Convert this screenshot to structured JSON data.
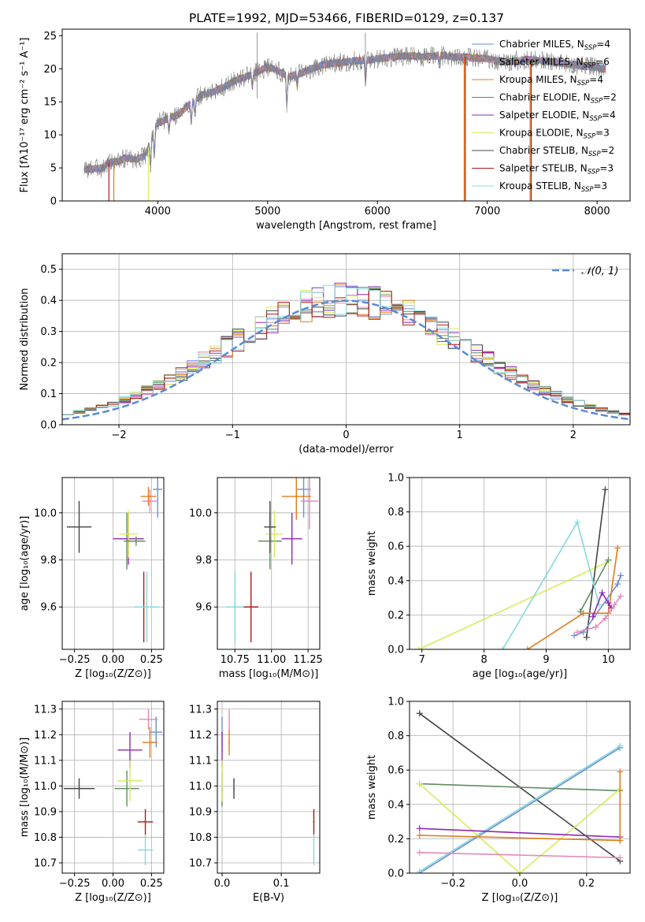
{
  "figure": {
    "title": "PLATE=1992, MJD=53466, FIBERID=0129, z=0.137"
  },
  "colors": {
    "Chabrier MILES": "#6a8fd6",
    "Salpeter MILES": "#e58ab8",
    "Kroupa MILES": "#e07b1b",
    "Chabrier ELODIE": "#5f8b5f",
    "Salpeter ELODIE": "#8e2ab3",
    "Kroupa ELODIE": "#d6ec5a",
    "Chabrier STELIB": "#444444",
    "Salpeter STELIB": "#b01818",
    "Kroupa STELIB": "#86d8dc"
  },
  "chart_data": [
    {
      "id": "spectrum",
      "type": "line",
      "xlabel": "wavelength [Angstrom, rest frame]",
      "ylabel": "Flux [fλ10⁻¹⁷ erg cm⁻² s⁻¹ A⁻¹]",
      "xlim": [
        3130,
        8300
      ],
      "ylim": [
        0,
        26
      ],
      "xticks": [
        4000,
        5000,
        6000,
        7000,
        8000
      ],
      "yticks": [
        0,
        5,
        10,
        15,
        20,
        25
      ],
      "grid": false,
      "legend_position": "right",
      "legend": [
        {
          "model": "Chabrier MILES",
          "label": "Chabrier MILES, N",
          "sub": "SSP",
          "tail": "=4"
        },
        {
          "model": "Salpeter MILES",
          "label": "Salpeter MILES, N",
          "sub": "SSP",
          "tail": "=6"
        },
        {
          "model": "Kroupa MILES",
          "label": "Kroupa MILES, N",
          "sub": "SSP",
          "tail": "=4"
        },
        {
          "model": "Chabrier ELODIE",
          "label": "Chabrier ELODIE, N",
          "sub": "SSP",
          "tail": "=2"
        },
        {
          "model": "Salpeter ELODIE",
          "label": "Salpeter ELODIE, N",
          "sub": "SSP",
          "tail": "=4"
        },
        {
          "model": "Kroupa ELODIE",
          "label": "Kroupa ELODIE, N",
          "sub": "SSP",
          "tail": "=3"
        },
        {
          "model": "Chabrier STELIB",
          "label": "Chabrier STELIB, N",
          "sub": "SSP",
          "tail": "=2"
        },
        {
          "model": "Salpeter STELIB",
          "label": "Salpeter STELIB, N",
          "sub": "SSP",
          "tail": "=3"
        },
        {
          "model": "Kroupa STELIB",
          "label": "Kroupa STELIB, N",
          "sub": "SSP",
          "tail": "=3"
        }
      ],
      "continuum": {
        "x": [
          3330,
          3500,
          3550,
          3650,
          3700,
          3800,
          3880,
          3950,
          4000,
          4100,
          4200,
          4300,
          4400,
          4500,
          4600,
          4700,
          4800,
          4900,
          5000,
          5100,
          5200,
          5300,
          5400,
          5500,
          5600,
          5700,
          5800,
          5900,
          6000,
          6100,
          6200,
          6300,
          6400,
          6500,
          6600,
          6700,
          6800,
          6900,
          7000,
          7100,
          7200,
          7300,
          7400,
          7500,
          7600,
          7700,
          7800,
          7900,
          8000,
          8080
        ],
        "y": [
          4.8,
          5.0,
          5.8,
          6.0,
          6.5,
          6.3,
          6.8,
          9.5,
          11.8,
          12.5,
          13.2,
          14.8,
          16.0,
          16.5,
          17.2,
          18.2,
          18.8,
          19.5,
          20.3,
          19.6,
          18.8,
          19.3,
          20.0,
          20.6,
          20.8,
          21.0,
          21.2,
          21.3,
          21.5,
          21.7,
          21.9,
          22.0,
          21.8,
          21.9,
          22.0,
          21.8,
          21.8,
          21.6,
          21.5,
          21.2,
          21.0,
          21.3,
          21.4,
          21.2,
          21.0,
          20.8,
          20.6,
          20.4,
          20.2,
          20.0
        ]
      },
      "absorption_lines": [
        {
          "x": 3934,
          "depth": 4.0
        },
        {
          "x": 3969,
          "depth": 3.5
        },
        {
          "x": 4102,
          "depth": 2.0
        },
        {
          "x": 4305,
          "depth": 3.2
        },
        {
          "x": 4340,
          "depth": 2.5
        },
        {
          "x": 4861,
          "depth": 2.0
        },
        {
          "x": 5175,
          "depth": 5.0
        },
        {
          "x": 5270,
          "depth": 2.0
        },
        {
          "x": 5892,
          "depth": 4.0
        },
        {
          "x": 6563,
          "depth": 1.5
        }
      ],
      "data_spikes": [
        {
          "x": 4905,
          "y": 25.5
        },
        {
          "x": 5890,
          "y": 25.5
        }
      ],
      "edge_artifacts": [
        3555,
        3600,
        3915,
        6790,
        6800,
        7390,
        7400
      ]
    },
    {
      "id": "residuals",
      "type": "histogram",
      "xlabel": "(data-model)/error",
      "ylabel": "Normed distribution",
      "xlim": [
        -2.5,
        2.5
      ],
      "ylim": [
        0,
        0.55
      ],
      "xticks": [
        -2,
        -1,
        0,
        1,
        2
      ],
      "xticklabels": [
        "−2",
        "−1",
        "0",
        "1",
        "2"
      ],
      "yticks": [
        0.0,
        0.1,
        0.2,
        0.3,
        0.4,
        0.5
      ],
      "yticklabels": [
        "0.0",
        "0.1",
        "0.2",
        "0.3",
        "0.4",
        "0.5"
      ],
      "grid": true,
      "bins": {
        "start": -2.5,
        "width": 0.1,
        "count": 50
      },
      "reference_curve": {
        "label": "𝒩(0, 1)",
        "mean": 0,
        "sigma": 1,
        "style": "dashed",
        "color": "#5b8bd6"
      }
    },
    {
      "id": "age-vs-metallicity",
      "type": "errorbar",
      "xlabel": "Z [log₁₀(Z/Z⊙)]",
      "ylabel": "age  [log₁₀(age/yr)]",
      "xlim": [
        -0.33,
        0.33
      ],
      "ylim": [
        9.42,
        10.15
      ],
      "xticks": [
        -0.25,
        0.0,
        0.25
      ],
      "xticklabels": [
        "−0.25",
        "0.00",
        "0.25"
      ],
      "yticks": [
        9.6,
        9.8,
        10.0
      ],
      "yticklabels": [
        "9.6",
        "9.8",
        "10.0"
      ],
      "grid": true,
      "points": [
        {
          "model": "Chabrier MILES",
          "x": 0.29,
          "xerr": 0.03,
          "y": 10.1,
          "yerr": 0.12
        },
        {
          "model": "Salpeter MILES",
          "x": 0.24,
          "xerr": 0.05,
          "y": 10.05,
          "yerr": 0.05
        },
        {
          "model": "Kroupa MILES",
          "x": 0.23,
          "xerr": 0.05,
          "y": 10.07,
          "yerr": 0.04
        },
        {
          "model": "Chabrier ELODIE",
          "x": 0.09,
          "xerr": 0.02,
          "y": 9.88,
          "yerr": 0.12
        },
        {
          "model": "Salpeter ELODIE",
          "x": 0.1,
          "xerr": 0.1,
          "y": 9.89,
          "yerr": 0.11
        },
        {
          "model": "Kroupa ELODIE",
          "x": 0.1,
          "xerr": 0.06,
          "y": 9.91,
          "yerr": 0.1
        },
        {
          "model": "Chabrier STELIB",
          "x": -0.22,
          "xerr": 0.08,
          "y": 9.94,
          "yerr": 0.11
        },
        {
          "model": "Salpeter STELIB",
          "x": 0.2,
          "xerr": 0.005,
          "y": 9.6,
          "yerr": 0.15
        },
        {
          "model": "Kroupa STELIB",
          "x": 0.22,
          "xerr": 0.08,
          "y": 9.6,
          "yerr": 0.15
        },
        {
          "model": "Chabrier ELODIE",
          "x": 0.15,
          "xerr": 0.06,
          "y": 9.88,
          "yerr": 0.02
        }
      ]
    },
    {
      "id": "age-vs-mass",
      "type": "errorbar",
      "xlabel": "mass [log₁₀(M/M⊙)]",
      "ylabel": "",
      "xlim": [
        10.63,
        11.33
      ],
      "ylim": [
        9.42,
        10.15
      ],
      "xticks": [
        10.75,
        11.0,
        11.25
      ],
      "xticklabels": [
        "10.75",
        "11.00",
        "11.25"
      ],
      "yticks": [
        9.6,
        9.8,
        10.0
      ],
      "yticklabels": [
        "9.6",
        "9.8",
        "10.0"
      ],
      "grid": true,
      "points": [
        {
          "model": "Chabrier MILES",
          "x": 11.22,
          "xerr": 0.05,
          "y": 10.1,
          "yerr": 0.12
        },
        {
          "model": "Salpeter MILES",
          "x": 11.26,
          "xerr": 0.06,
          "y": 10.05,
          "yerr": 0.12
        },
        {
          "model": "Kroupa MILES",
          "x": 11.17,
          "xerr": 0.1,
          "y": 10.07,
          "yerr": 0.1
        },
        {
          "model": "Chabrier ELODIE",
          "x": 10.99,
          "xerr": 0.08,
          "y": 9.88,
          "yerr": 0.12
        },
        {
          "model": "Salpeter ELODIE",
          "x": 11.14,
          "xerr": 0.07,
          "y": 9.89,
          "yerr": 0.11
        },
        {
          "model": "Kroupa ELODIE",
          "x": 11.02,
          "xerr": 0.06,
          "y": 9.91,
          "yerr": 0.1
        },
        {
          "model": "Chabrier STELIB",
          "x": 10.99,
          "xerr": 0.04,
          "y": 9.94,
          "yerr": 0.11
        },
        {
          "model": "Salpeter STELIB",
          "x": 10.86,
          "xerr": 0.05,
          "y": 9.6,
          "yerr": 0.15
        },
        {
          "model": "Kroupa STELIB",
          "x": 10.75,
          "xerr": 0.06,
          "y": 9.6,
          "yerr": 0.15
        }
      ]
    },
    {
      "id": "weight-vs-age",
      "type": "line",
      "xlabel": "age  [log₁₀(age/yr)]",
      "ylabel": "mass weight",
      "xlim": [
        6.8,
        10.35
      ],
      "ylim": [
        0,
        1.0
      ],
      "xticks": [
        7,
        8,
        9,
        10
      ],
      "xticklabels": [
        "7",
        "8",
        "9",
        "10"
      ],
      "yticks": [
        0.0,
        0.2,
        0.4,
        0.6,
        0.8,
        1.0
      ],
      "yticklabels": [
        "0.0",
        "0.2",
        "0.4",
        "0.6",
        "0.8",
        "1.0"
      ],
      "grid": true,
      "series": [
        {
          "model": "Kroupa ELODIE",
          "x": [
            6.95,
            10.0
          ],
          "y": [
            0.0,
            0.51
          ]
        },
        {
          "model": "Chabrier ELODIE",
          "x": [
            9.55,
            10.0
          ],
          "y": [
            0.22,
            0.52
          ]
        },
        {
          "model": "Chabrier STELIB",
          "x": [
            9.65,
            9.95
          ],
          "y": [
            0.07,
            0.93
          ]
        },
        {
          "model": "Kroupa STELIB",
          "x": [
            8.3,
            9.5,
            9.85
          ],
          "y": [
            0.0,
            0.74,
            0.26
          ]
        },
        {
          "model": "Chabrier MILES",
          "x": [
            9.45,
            9.6,
            10.15,
            10.2
          ],
          "y": [
            0.08,
            0.1,
            0.38,
            0.43
          ]
        },
        {
          "model": "Kroupa MILES",
          "x": [
            8.7,
            9.6,
            10.0,
            10.15
          ],
          "y": [
            0.0,
            0.21,
            0.21,
            0.59
          ]
        },
        {
          "model": "Salpeter ELODIE",
          "x": [
            9.75,
            9.9,
            10.0,
            10.05
          ],
          "y": [
            0.19,
            0.33,
            0.27,
            0.24
          ]
        },
        {
          "model": "Salpeter MILES",
          "x": [
            9.5,
            9.8,
            9.95,
            10.1,
            10.2
          ],
          "y": [
            0.1,
            0.13,
            0.18,
            0.26,
            0.31
          ]
        }
      ]
    },
    {
      "id": "mass-vs-metallicity",
      "type": "errorbar",
      "xlabel": "Z [log₁₀(Z/Z⊙)]",
      "ylabel": "mass [log₁₀(M/M⊙)]",
      "xlim": [
        -0.33,
        0.33
      ],
      "ylim": [
        10.66,
        11.33
      ],
      "xticks": [
        -0.25,
        0.0,
        0.25
      ],
      "xticklabels": [
        "−0.25",
        "0.00",
        "0.25"
      ],
      "yticks": [
        10.7,
        10.8,
        10.9,
        11.0,
        11.1,
        11.2,
        11.3
      ],
      "yticklabels": [
        "10.7",
        "10.8",
        "10.9",
        "11.0",
        "11.1",
        "11.2",
        "11.3"
      ],
      "grid": true,
      "points": [
        {
          "model": "Chabrier MILES",
          "x": 0.28,
          "xerr": 0.04,
          "y": 11.21,
          "yerr": 0.06
        },
        {
          "model": "Salpeter MILES",
          "x": 0.23,
          "xerr": 0.06,
          "y": 11.26,
          "yerr": 0.04
        },
        {
          "model": "Kroupa MILES",
          "x": 0.24,
          "xerr": 0.05,
          "y": 11.17,
          "yerr": 0.06
        },
        {
          "model": "Chabrier ELODIE",
          "x": 0.09,
          "xerr": 0.08,
          "y": 10.99,
          "yerr": 0.07
        },
        {
          "model": "Salpeter ELODIE",
          "x": 0.11,
          "xerr": 0.08,
          "y": 11.14,
          "yerr": 0.07
        },
        {
          "model": "Kroupa ELODIE",
          "x": 0.11,
          "xerr": 0.08,
          "y": 11.02,
          "yerr": 0.08
        },
        {
          "model": "Chabrier STELIB",
          "x": -0.22,
          "xerr": 0.1,
          "y": 10.99,
          "yerr": 0.04
        },
        {
          "model": "Salpeter STELIB",
          "x": 0.21,
          "xerr": 0.05,
          "y": 10.86,
          "yerr": 0.05
        },
        {
          "model": "Kroupa STELIB",
          "x": 0.21,
          "xerr": 0.05,
          "y": 10.75,
          "yerr": 0.06
        }
      ]
    },
    {
      "id": "mass-vs-ebv",
      "type": "errorbar",
      "xlabel": "E(B-V)",
      "ylabel": "",
      "xlim": [
        -0.008,
        0.165
      ],
      "ylim": [
        10.66,
        11.33
      ],
      "xticks": [
        0.0,
        0.1
      ],
      "xticklabels": [
        "0.0",
        "0.1"
      ],
      "yticks": [
        10.7,
        10.8,
        10.9,
        11.0,
        11.1,
        11.2,
        11.3
      ],
      "yticklabels": [
        "10.7",
        "10.8",
        "10.9",
        "11.0",
        "11.1",
        "11.2",
        "11.3"
      ],
      "grid": true,
      "points": [
        {
          "model": "Chabrier MILES",
          "x": 0.0,
          "xerr": 0.001,
          "y": 11.21,
          "yerr": 0.06
        },
        {
          "model": "Salpeter MILES",
          "x": 0.012,
          "xerr": 0.001,
          "y": 11.26,
          "yerr": 0.04
        },
        {
          "model": "Kroupa MILES",
          "x": 0.012,
          "xerr": 0.001,
          "y": 11.17,
          "yerr": 0.05
        },
        {
          "model": "Chabrier ELODIE",
          "x": 0.0,
          "xerr": 0.001,
          "y": 10.99,
          "yerr": 0.07
        },
        {
          "model": "Salpeter ELODIE",
          "x": 0.0,
          "xerr": 0.001,
          "y": 11.14,
          "yerr": 0.07
        },
        {
          "model": "Kroupa ELODIE",
          "x": 0.0,
          "xerr": 0.001,
          "y": 11.02,
          "yerr": 0.08
        },
        {
          "model": "Chabrier STELIB",
          "x": 0.02,
          "xerr": 0.001,
          "y": 10.99,
          "yerr": 0.04
        },
        {
          "model": "Salpeter STELIB",
          "x": 0.155,
          "xerr": 0.001,
          "y": 10.86,
          "yerr": 0.05
        },
        {
          "model": "Kroupa STELIB",
          "x": 0.155,
          "xerr": 0.001,
          "y": 10.75,
          "yerr": 0.06
        }
      ]
    },
    {
      "id": "weight-vs-metallicity",
      "type": "line",
      "xlabel": "Z [log₁₀(Z/Z⊙)]",
      "ylabel": "mass weight",
      "xlim": [
        -0.33,
        0.33
      ],
      "ylim": [
        0,
        1.0
      ],
      "xticks": [
        -0.2,
        0.0,
        0.2
      ],
      "xticklabels": [
        "−0.2",
        "0.0",
        "0.2"
      ],
      "yticks": [
        0.0,
        0.2,
        0.4,
        0.6,
        0.8,
        1.0
      ],
      "yticklabels": [
        "0.0",
        "0.2",
        "0.4",
        "0.6",
        "0.8",
        "1.0"
      ],
      "grid": true,
      "series": [
        {
          "model": "Chabrier STELIB",
          "x": [
            -0.3,
            0.3
          ],
          "y": [
            0.93,
            0.07
          ]
        },
        {
          "model": "Chabrier MILES",
          "x": [
            -0.3,
            0.3
          ],
          "y": [
            0.0,
            0.73
          ]
        },
        {
          "model": "Kroupa STELIB",
          "x": [
            -0.3,
            0.3
          ],
          "y": [
            0.01,
            0.74
          ]
        },
        {
          "model": "Chabrier ELODIE",
          "x": [
            -0.3,
            0.3
          ],
          "y": [
            0.52,
            0.48
          ]
        },
        {
          "model": "Kroupa ELODIE",
          "x": [
            -0.3,
            0.0,
            0.3
          ],
          "y": [
            0.52,
            0.0,
            0.49
          ]
        },
        {
          "model": "Salpeter ELODIE",
          "x": [
            -0.3,
            0.3
          ],
          "y": [
            0.26,
            0.21
          ]
        },
        {
          "model": "Kroupa MILES",
          "x": [
            -0.3,
            0.3
          ],
          "y": [
            0.22,
            0.19
          ]
        },
        {
          "model": "Salpeter MILES",
          "x": [
            -0.3,
            0.3
          ],
          "y": [
            0.12,
            0.09
          ]
        },
        {
          "model": "Kroupa MILES",
          "x": [
            0.3,
            0.3
          ],
          "y": [
            0.19,
            0.59
          ]
        }
      ]
    }
  ]
}
